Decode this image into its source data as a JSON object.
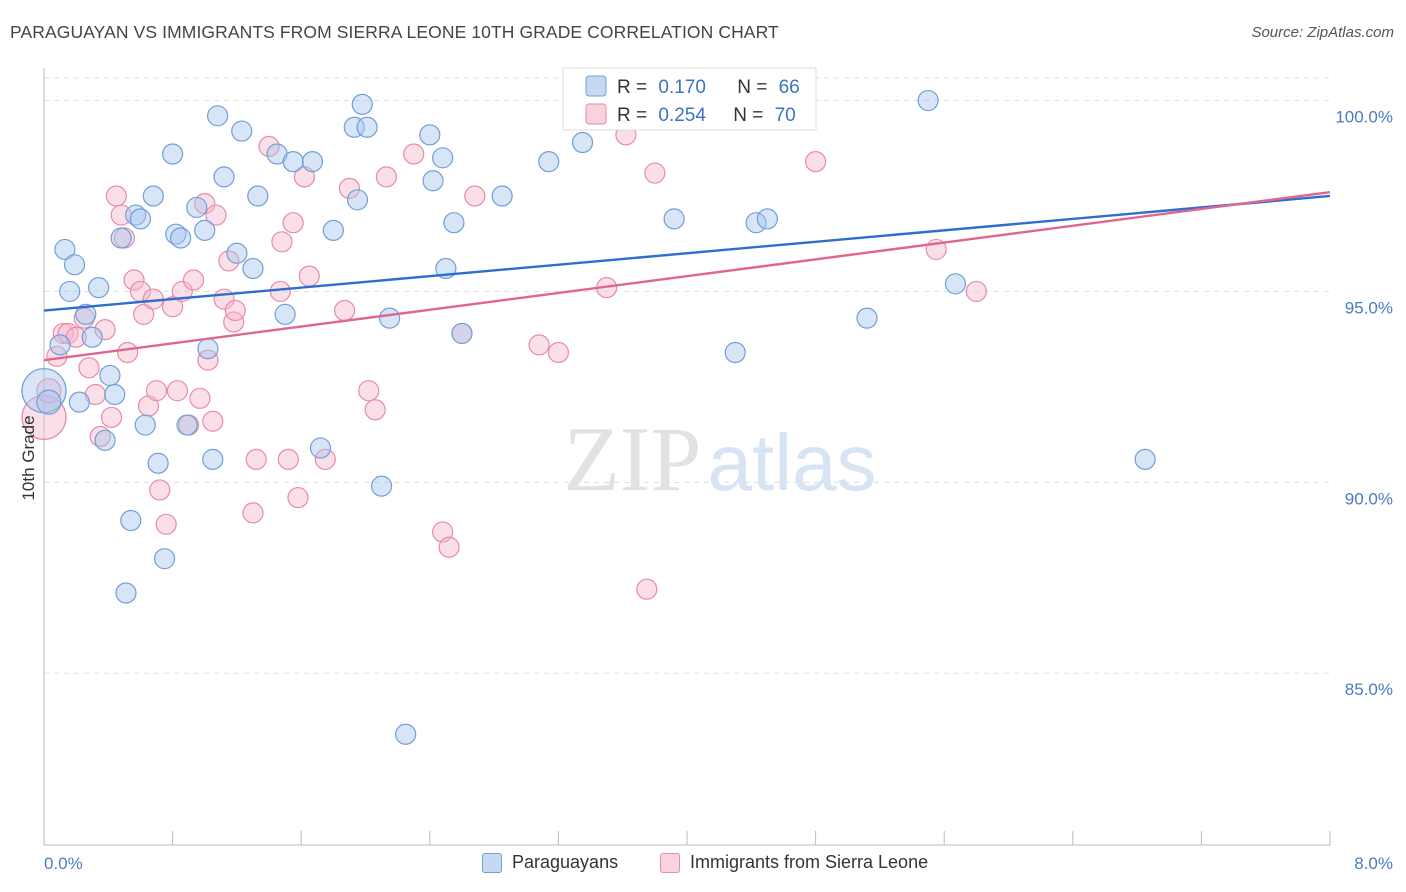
{
  "header": {
    "title": "PARAGUAYAN VS IMMIGRANTS FROM SIERRA LEONE 10TH GRADE CORRELATION CHART",
    "source": "Source: ZipAtlas.com"
  },
  "watermark": {
    "part1": "ZIP",
    "part2": "atlas"
  },
  "legend": {
    "series": [
      {
        "r_label": "R =",
        "r_value": "0.170",
        "n_label": "N =",
        "n_value": "66"
      },
      {
        "r_label": "R =",
        "r_value": "0.254",
        "n_label": "N =",
        "n_value": "70"
      }
    ]
  },
  "bottom_legend": {
    "items": [
      "Paraguayans",
      "Immigrants from Sierra Leone"
    ]
  },
  "colors": {
    "blue_fill": "#a9c6ee",
    "blue_stroke": "#6f9fd8",
    "blue_line": "#2f6fcc",
    "pink_fill": "#f4b8cb",
    "pink_stroke": "#e88aa8",
    "pink_line": "#e06690",
    "tick_text": "#4a7cc0",
    "grid": "#dddddd"
  },
  "chart_data": {
    "type": "scatter",
    "xlabel": "",
    "ylabel": "10th Grade",
    "xlim": [
      0,
      8
    ],
    "ylim": [
      80.5,
      100.8
    ],
    "x_tick_labels": [
      "0.0%",
      "8.0%"
    ],
    "y_ticks": [
      85,
      90,
      95,
      100
    ],
    "y_tick_labels": [
      "85.0%",
      "90.0%",
      "95.0%",
      "100.0%"
    ],
    "grid": true,
    "legend_position": "top-center",
    "series": [
      {
        "name": "Paraguayans",
        "color": "#6f9fd8",
        "r": 0.17,
        "n": 66,
        "trend": {
          "x": [
            0,
            8
          ],
          "y": [
            94.5,
            97.5
          ]
        },
        "points": [
          [
            0.0,
            92.4,
            22
          ],
          [
            0.03,
            92.1,
            12
          ],
          [
            0.1,
            93.6,
            10
          ],
          [
            0.13,
            96.1,
            10
          ],
          [
            0.16,
            95.0,
            10
          ],
          [
            0.19,
            95.7,
            10
          ],
          [
            0.22,
            92.1,
            10
          ],
          [
            0.26,
            94.4,
            10
          ],
          [
            0.3,
            93.8,
            10
          ],
          [
            0.34,
            95.1,
            10
          ],
          [
            0.38,
            91.1,
            10
          ],
          [
            0.41,
            92.8,
            10
          ],
          [
            0.44,
            92.3,
            10
          ],
          [
            0.48,
            96.4,
            10
          ],
          [
            0.51,
            87.1,
            10
          ],
          [
            0.54,
            89.0,
            10
          ],
          [
            0.57,
            97.0,
            10
          ],
          [
            0.6,
            96.9,
            10
          ],
          [
            0.63,
            91.5,
            10
          ],
          [
            0.68,
            97.5,
            10
          ],
          [
            0.71,
            90.5,
            10
          ],
          [
            0.75,
            88.0,
            10
          ],
          [
            0.8,
            98.6,
            10
          ],
          [
            0.82,
            96.5,
            10
          ],
          [
            0.85,
            96.4,
            10
          ],
          [
            0.89,
            91.5,
            10
          ],
          [
            0.95,
            97.2,
            10
          ],
          [
            1.0,
            96.6,
            10
          ],
          [
            1.02,
            93.5,
            10
          ],
          [
            1.05,
            90.6,
            10
          ],
          [
            1.08,
            99.6,
            10
          ],
          [
            1.12,
            98.0,
            10
          ],
          [
            1.2,
            96.0,
            10
          ],
          [
            1.23,
            99.2,
            10
          ],
          [
            1.33,
            97.5,
            10
          ],
          [
            1.45,
            98.6,
            10
          ],
          [
            1.5,
            94.4,
            10
          ],
          [
            1.55,
            98.4,
            10
          ],
          [
            1.67,
            98.4,
            10
          ],
          [
            1.72,
            90.9,
            10
          ],
          [
            1.8,
            96.6,
            10
          ],
          [
            1.93,
            99.3,
            10
          ],
          [
            1.95,
            97.4,
            10
          ],
          [
            1.98,
            99.9,
            10
          ],
          [
            2.01,
            99.3,
            10
          ],
          [
            2.1,
            89.9,
            10
          ],
          [
            2.15,
            94.3,
            10
          ],
          [
            2.25,
            83.4,
            10
          ],
          [
            2.4,
            99.1,
            10
          ],
          [
            2.42,
            97.9,
            10
          ],
          [
            2.48,
            98.5,
            10
          ],
          [
            2.55,
            96.8,
            10
          ],
          [
            2.6,
            93.9,
            10
          ],
          [
            2.5,
            95.6,
            10
          ],
          [
            2.85,
            97.5,
            10
          ],
          [
            3.14,
            98.4,
            10
          ],
          [
            3.35,
            98.9,
            10
          ],
          [
            3.92,
            96.9,
            10
          ],
          [
            4.3,
            93.4,
            10
          ],
          [
            4.43,
            96.8,
            10
          ],
          [
            4.5,
            96.9,
            10
          ],
          [
            5.12,
            94.3,
            10
          ],
          [
            5.5,
            100.0,
            10
          ],
          [
            5.67,
            95.2,
            10
          ],
          [
            6.85,
            90.6,
            10
          ],
          [
            1.3,
            95.6,
            10
          ]
        ]
      },
      {
        "name": "Immigrants from Sierra Leone",
        "color": "#e88aa8",
        "r": 0.254,
        "n": 70,
        "trend": {
          "x": [
            0,
            8
          ],
          "y": [
            93.2,
            97.6
          ]
        },
        "points": [
          [
            0.0,
            91.7,
            22
          ],
          [
            0.03,
            92.4,
            12
          ],
          [
            0.08,
            93.3,
            10
          ],
          [
            0.12,
            93.9,
            10
          ],
          [
            0.15,
            93.9,
            10
          ],
          [
            0.2,
            93.8,
            10
          ],
          [
            0.25,
            94.3,
            10
          ],
          [
            0.28,
            93.0,
            10
          ],
          [
            0.32,
            92.3,
            10
          ],
          [
            0.35,
            91.2,
            10
          ],
          [
            0.38,
            94.0,
            10
          ],
          [
            0.42,
            91.7,
            10
          ],
          [
            0.45,
            97.5,
            10
          ],
          [
            0.48,
            97.0,
            10
          ],
          [
            0.5,
            96.4,
            10
          ],
          [
            0.52,
            93.4,
            10
          ],
          [
            0.56,
            95.3,
            10
          ],
          [
            0.6,
            95.0,
            10
          ],
          [
            0.62,
            94.4,
            10
          ],
          [
            0.65,
            92.0,
            10
          ],
          [
            0.68,
            94.8,
            10
          ],
          [
            0.7,
            92.4,
            10
          ],
          [
            0.72,
            89.8,
            10
          ],
          [
            0.76,
            88.9,
            10
          ],
          [
            0.8,
            94.6,
            10
          ],
          [
            0.83,
            92.4,
            10
          ],
          [
            0.86,
            95.0,
            10
          ],
          [
            0.9,
            91.5,
            10
          ],
          [
            0.93,
            95.3,
            10
          ],
          [
            0.97,
            92.2,
            10
          ],
          [
            1.0,
            97.3,
            10
          ],
          [
            1.02,
            93.2,
            10
          ],
          [
            1.05,
            91.6,
            10
          ],
          [
            1.07,
            97.0,
            10
          ],
          [
            1.12,
            94.8,
            10
          ],
          [
            1.15,
            95.8,
            10
          ],
          [
            1.18,
            94.2,
            10
          ],
          [
            1.19,
            94.5,
            10
          ],
          [
            1.3,
            89.2,
            10
          ],
          [
            1.32,
            90.6,
            10
          ],
          [
            1.4,
            98.8,
            10
          ],
          [
            1.47,
            95.0,
            10
          ],
          [
            1.48,
            96.3,
            10
          ],
          [
            1.52,
            90.6,
            10
          ],
          [
            1.55,
            96.8,
            10
          ],
          [
            1.58,
            89.6,
            10
          ],
          [
            1.62,
            98.0,
            10
          ],
          [
            1.65,
            95.4,
            10
          ],
          [
            1.75,
            90.6,
            10
          ],
          [
            1.87,
            94.5,
            10
          ],
          [
            1.9,
            97.7,
            10
          ],
          [
            2.02,
            92.4,
            10
          ],
          [
            2.06,
            91.9,
            10
          ],
          [
            2.13,
            98.0,
            10
          ],
          [
            2.3,
            98.6,
            10
          ],
          [
            2.48,
            88.7,
            10
          ],
          [
            2.52,
            88.3,
            10
          ],
          [
            2.6,
            93.9,
            10
          ],
          [
            2.68,
            97.5,
            10
          ],
          [
            3.08,
            93.6,
            10
          ],
          [
            3.2,
            93.4,
            10
          ],
          [
            3.5,
            95.1,
            10
          ],
          [
            3.55,
            100.0,
            10
          ],
          [
            3.75,
            87.2,
            10
          ],
          [
            3.8,
            98.1,
            10
          ],
          [
            4.3,
            100.0,
            10
          ],
          [
            4.8,
            98.4,
            10
          ],
          [
            5.55,
            96.1,
            10
          ],
          [
            5.8,
            95.0,
            10
          ],
          [
            3.62,
            99.1,
            10
          ]
        ]
      }
    ]
  }
}
